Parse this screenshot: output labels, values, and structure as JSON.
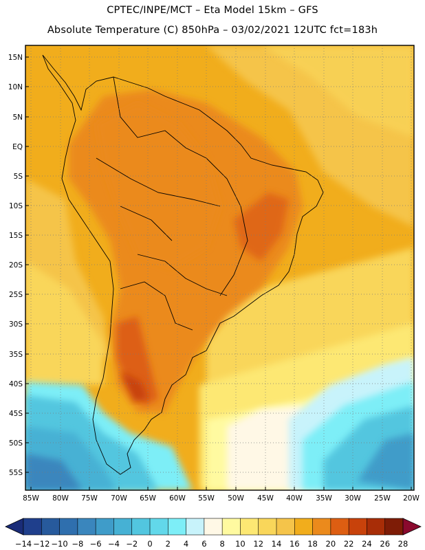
{
  "header": {
    "line1": "CPTEC/INPE/MCT  –   Eta Model 15km  –  GFS",
    "line2": "Absolute Temperature (C) 850hPa  –  03/02/2021 12UTC fct=183h"
  },
  "map": {
    "lon_range": [
      -86,
      -20
    ],
    "lat_range": [
      -58,
      16
    ],
    "lat_ticks": [
      "15N",
      "10N",
      "5N",
      "EQ",
      "5S",
      "10S",
      "15S",
      "20S",
      "25S",
      "30S",
      "35S",
      "40S",
      "45S",
      "50S",
      "55S"
    ],
    "lon_ticks": [
      "85W",
      "80W",
      "75W",
      "70W",
      "65W",
      "60W",
      "55W",
      "50W",
      "45W",
      "40W",
      "35W",
      "30W",
      "25W",
      "20W"
    ],
    "grid": "dotted"
  },
  "colorbar": {
    "labels": [
      "-14",
      "-12",
      "-10",
      "-8",
      "-6",
      "-4",
      "-2",
      "0",
      "2",
      "4",
      "6",
      "8",
      "10",
      "12",
      "14",
      "16",
      "18",
      "20",
      "22",
      "24",
      "26",
      "28"
    ],
    "colors": [
      "#1f3f8c",
      "#275a9c",
      "#2f6fae",
      "#3a86bd",
      "#3f9cc9",
      "#46b1d4",
      "#52c6df",
      "#62d8ea",
      "#7deef7",
      "#c8f3fb",
      "#fff8e6",
      "#fffaa0",
      "#fde873",
      "#f9d65a",
      "#f5c44a",
      "#f1ad1c",
      "#eb8a1c",
      "#dd5e12",
      "#c8420b",
      "#a82d07",
      "#7e1c06"
    ],
    "under_color": "#1a2c78",
    "over_color": "#8a0a2e"
  }
}
